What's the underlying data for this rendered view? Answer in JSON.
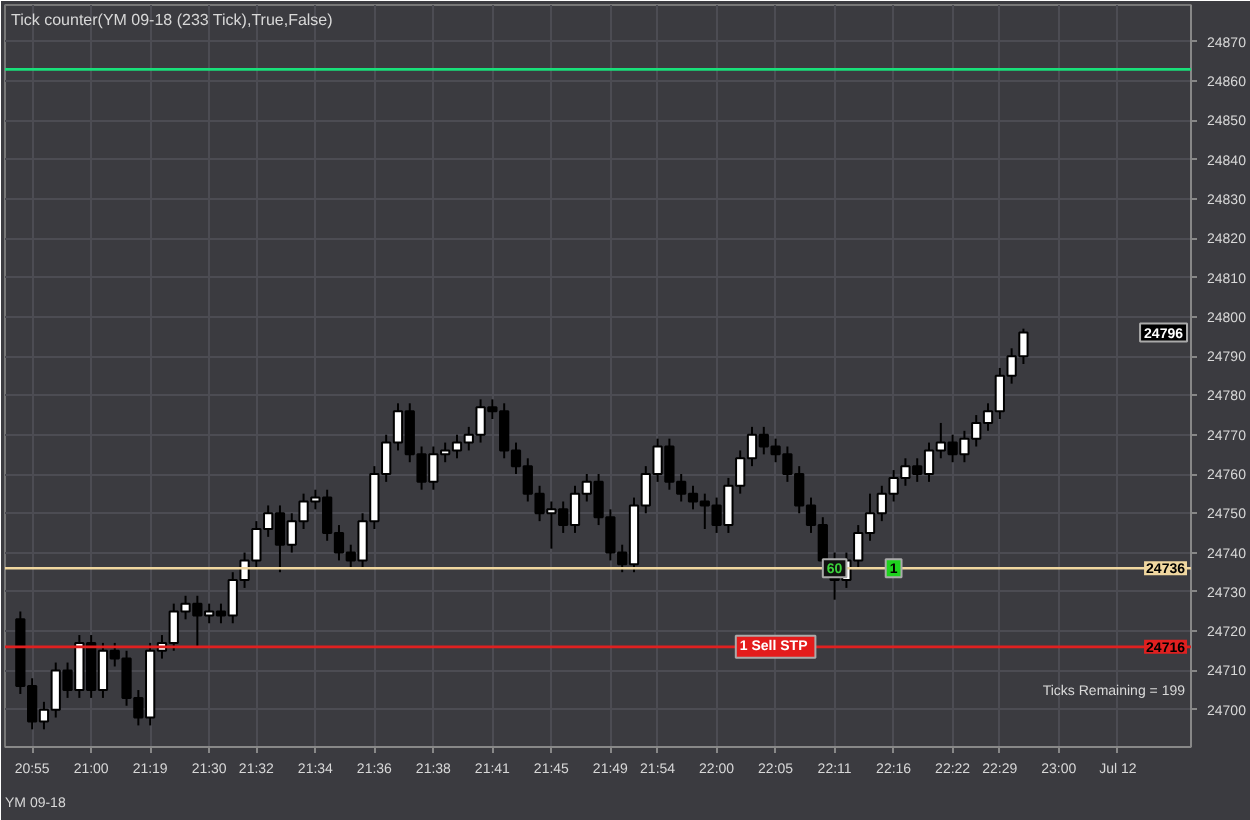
{
  "chart_data": {
    "type": "candlestick",
    "title": "Tick counter(YM 09-18 (233 Tick),True,False)",
    "categories": [
      null,
      "20:55",
      null,
      null,
      null,
      null,
      "21:00",
      null,
      null,
      null,
      null,
      "21:19",
      null,
      null,
      null,
      null,
      "21:30",
      null,
      null,
      null,
      "21:32",
      null,
      null,
      null,
      null,
      "21:34",
      null,
      null,
      null,
      null,
      "21:36",
      null,
      null,
      null,
      null,
      "21:38",
      null,
      null,
      null,
      null,
      "21:41",
      null,
      null,
      null,
      null,
      "21:45",
      null,
      null,
      null,
      null,
      "21:49",
      null,
      null,
      null,
      "21:54",
      null,
      null,
      null,
      null,
      "22:00",
      null,
      null,
      null,
      null,
      "22:05",
      null,
      null,
      null,
      null,
      "22:11",
      null,
      null,
      null,
      null,
      "22:16",
      null,
      null,
      null,
      null,
      "22:22",
      null,
      null,
      null,
      "22:29",
      null,
      null,
      null,
      null,
      "23:00",
      null,
      null,
      null,
      null,
      "Jul 12",
      null,
      null,
      null,
      null,
      null,
      null
    ],
    "ohlc": [
      [
        24723,
        24725,
        24704,
        24706
      ],
      [
        24706,
        24708,
        24695,
        24697
      ],
      [
        24697,
        24702,
        24695,
        24700
      ],
      [
        24700,
        24712,
        24698,
        24710
      ],
      [
        24710,
        24712,
        24703,
        24705
      ],
      [
        24705,
        24719,
        24703,
        24717
      ],
      [
        24717,
        24719,
        24703,
        24705
      ],
      [
        24705,
        24717,
        24703,
        24715
      ],
      [
        24715,
        24717,
        24711,
        24713
      ],
      [
        24713,
        24715,
        24701,
        24703
      ],
      [
        24703,
        24705,
        24696,
        24698
      ],
      [
        24698,
        24717,
        24696,
        24715
      ],
      [
        24715,
        24719,
        24713,
        24717
      ],
      [
        24717,
        24727,
        24715,
        24725
      ],
      [
        24725,
        24729,
        24723,
        24727
      ],
      [
        24727,
        24729,
        24716,
        24724
      ],
      [
        24724,
        24727,
        24722,
        24725
      ],
      [
        24725,
        24727,
        24722,
        24724
      ],
      [
        24724,
        24735,
        24722,
        24733
      ],
      [
        24733,
        24740,
        24731,
        24738
      ],
      [
        24738,
        24748,
        24736,
        24746
      ],
      [
        24746,
        24752,
        24744,
        24750
      ],
      [
        24750,
        24752,
        24735,
        24742
      ],
      [
        24742,
        24750,
        24740,
        24748
      ],
      [
        24748,
        24755,
        24746,
        24753
      ],
      [
        24753,
        24756,
        24751,
        24754
      ],
      [
        24754,
        24756,
        24743,
        24745
      ],
      [
        24745,
        24747,
        24738,
        24740
      ],
      [
        24740,
        24742,
        24736,
        24738
      ],
      [
        24738,
        24750,
        24736,
        24748
      ],
      [
        24748,
        24762,
        24746,
        24760
      ],
      [
        24760,
        24770,
        24758,
        24768
      ],
      [
        24768,
        24778,
        24766,
        24776
      ],
      [
        24776,
        24778,
        24763,
        24765
      ],
      [
        24765,
        24767,
        24756,
        24758
      ],
      [
        24758,
        24767,
        24756,
        24765
      ],
      [
        24765,
        24768,
        24763,
        24766
      ],
      [
        24766,
        24770,
        24764,
        24768
      ],
      [
        24768,
        24772,
        24766,
        24770
      ],
      [
        24770,
        24779,
        24768,
        24777
      ],
      [
        24777,
        24779,
        24774,
        24776
      ],
      [
        24776,
        24778,
        24764,
        24766
      ],
      [
        24766,
        24768,
        24760,
        24762
      ],
      [
        24762,
        24764,
        24753,
        24755
      ],
      [
        24755,
        24757,
        24748,
        24750
      ],
      [
        24750,
        24753,
        24741,
        24751
      ],
      [
        24751,
        24753,
        24745,
        24747
      ],
      [
        24747,
        24757,
        24745,
        24755
      ],
      [
        24755,
        24760,
        24753,
        24758
      ],
      [
        24758,
        24760,
        24747,
        24749
      ],
      [
        24749,
        24751,
        24738,
        24740
      ],
      [
        24740,
        24742,
        24735,
        24737
      ],
      [
        24737,
        24754,
        24735,
        24752
      ],
      [
        24752,
        24762,
        24750,
        24760
      ],
      [
        24760,
        24769,
        24758,
        24767
      ],
      [
        24767,
        24769,
        24756,
        24758
      ],
      [
        24758,
        24760,
        24753,
        24755
      ],
      [
        24755,
        24757,
        24751,
        24753
      ],
      [
        24753,
        24755,
        24746,
        24752
      ],
      [
        24752,
        24754,
        24745,
        24747
      ],
      [
        24747,
        24759,
        24745,
        24757
      ],
      [
        24757,
        24766,
        24755,
        24764
      ],
      [
        24764,
        24772,
        24762,
        24770
      ],
      [
        24770,
        24772,
        24765,
        24767
      ],
      [
        24767,
        24769,
        24763,
        24765
      ],
      [
        24765,
        24767,
        24758,
        24760
      ],
      [
        24760,
        24762,
        24750,
        24752
      ],
      [
        24752,
        24754,
        24745,
        24747
      ],
      [
        24747,
        24749,
        24736,
        24738
      ],
      [
        24738,
        24740,
        24728,
        24733
      ],
      [
        24733,
        24740,
        24731,
        24738
      ],
      [
        24738,
        24747,
        24736,
        24745
      ],
      [
        24745,
        24755,
        24743,
        24750
      ],
      [
        24750,
        24757,
        24748,
        24755
      ],
      [
        24755,
        24761,
        24753,
        24759
      ],
      [
        24759,
        24764,
        24757,
        24762
      ],
      [
        24762,
        24764,
        24758,
        24760
      ],
      [
        24760,
        24768,
        24758,
        24766
      ],
      [
        24766,
        24773,
        24764,
        24768
      ],
      [
        24768,
        24770,
        24763,
        24765
      ],
      [
        24765,
        24771,
        24763,
        24769
      ],
      [
        24769,
        24775,
        24767,
        24773
      ],
      [
        24773,
        24778,
        24771,
        24776
      ],
      [
        24776,
        24787,
        24774,
        24785
      ],
      [
        24785,
        24792,
        24783,
        24790
      ],
      [
        24790,
        24797,
        24788,
        24796
      ],
      null,
      null,
      null,
      null,
      null,
      null,
      null,
      null,
      null,
      null,
      null,
      null,
      null,
      null
    ],
    "ylim": [
      24690.5,
      24879.4
    ],
    "yticks": [
      24700,
      24710,
      24720,
      24730,
      24740,
      24750,
      24760,
      24770,
      24780,
      24790,
      24800,
      24810,
      24820,
      24830,
      24840,
      24850,
      24860,
      24870
    ],
    "grid": true,
    "ref_lines": [
      {
        "axis": "y",
        "value": 24863,
        "label": null,
        "color": "#19e07a"
      },
      {
        "axis": "y",
        "value": 24736,
        "label": "24736",
        "color": "#f0d7a0"
      },
      {
        "axis": "y",
        "value": 24716,
        "label": "24716",
        "color": "#e02020"
      }
    ],
    "annotations": [
      {
        "text": "24796",
        "y": 24796
      },
      {
        "text": "1  Sell STP",
        "x": "22:05",
        "y": 24716
      },
      {
        "text": "60",
        "x": "22:11",
        "y": 24736
      },
      {
        "text": "1",
        "x": "22:16",
        "y": 24736
      },
      "Ticks Remaining = 199",
      "YM 09-18"
    ]
  }
}
